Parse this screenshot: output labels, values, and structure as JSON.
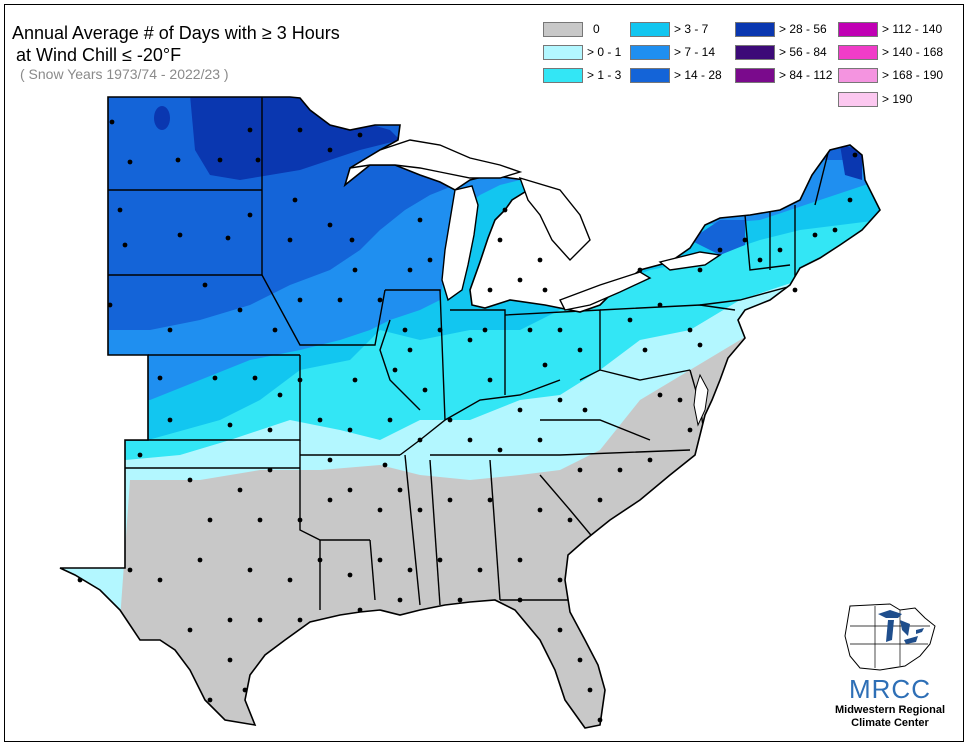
{
  "title": {
    "line1": "Annual Average # of Days with ≥ 3 Hours",
    "line2": "at Wind Chill ≤ -20°F",
    "subtitle": "( Snow Years 1973/74 - 2022/23 )"
  },
  "legend": [
    {
      "label": "0",
      "color": "#c8c8c8"
    },
    {
      "label": "> 0 - 1",
      "color": "#b3f7ff"
    },
    {
      "label": "> 1 - 3",
      "color": "#33e6f5"
    },
    {
      "label": "> 3 - 7",
      "color": "#12c6f0"
    },
    {
      "label": "> 7 - 14",
      "color": "#1f8ff0"
    },
    {
      "label": "> 14 - 28",
      "color": "#1464d8"
    },
    {
      "label": "> 28 - 56",
      "color": "#0a37b0"
    },
    {
      "label": "> 56 - 84",
      "color": "#3c0a78"
    },
    {
      "label": "> 84 - 112",
      "color": "#7a0a8c"
    },
    {
      "label": "> 112 - 140",
      "color": "#c000b4"
    },
    {
      "label": "> 140 - 168",
      "color": "#f03cc8"
    },
    {
      "label": "> 168 - 190",
      "color": "#f494e0"
    },
    {
      "label": "> 190",
      "color": "#fcc8f0"
    }
  ],
  "logo": {
    "acronym": "MRCC",
    "line1": "Midwestern Regional",
    "line2": "Climate Center"
  }
}
